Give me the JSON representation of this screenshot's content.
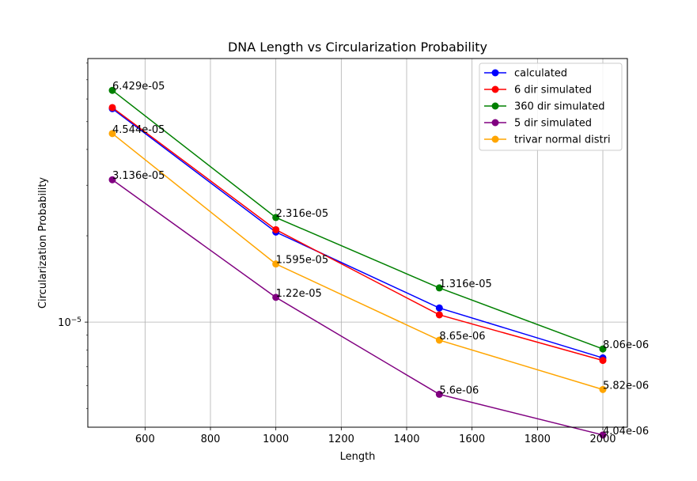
{
  "chart_data": {
    "type": "line",
    "title": "DNA Length vs Circularization Probability",
    "xlabel": "Length",
    "ylabel": "Circularization Probability",
    "yscale": "log",
    "xlim": [
      425,
      2075
    ],
    "ylim": [
      4.3e-06,
      8.3e-05
    ],
    "grid": true,
    "legend_position": "top-right",
    "x": [
      500,
      1000,
      1500,
      2000
    ],
    "x_ticks": [
      600,
      800,
      1000,
      1200,
      1400,
      1600,
      1800,
      2000
    ],
    "y_tick_major_label": "10",
    "y_tick_major_exponent": "−5",
    "series": [
      {
        "name": "calculated",
        "color": "#0000ff",
        "values": [
          5.55e-05,
          2.06e-05,
          1.12e-05,
          7.5e-06
        ]
      },
      {
        "name": "6 dir simulated",
        "color": "#ff0000",
        "values": [
          5.6e-05,
          2.1e-05,
          1.06e-05,
          7.35e-06
        ]
      },
      {
        "name": "360 dir simulated",
        "color": "#008000",
        "values": [
          6.429e-05,
          2.316e-05,
          1.316e-05,
          8.06e-06
        ]
      },
      {
        "name": "5 dir simulated",
        "color": "#800080",
        "values": [
          3.136e-05,
          1.22e-05,
          5.6e-06,
          4.04e-06
        ]
      },
      {
        "name": "trivar normal distri",
        "color": "#ffa500",
        "values": [
          4.544e-05,
          1.595e-05,
          8.65e-06,
          5.82e-06
        ]
      }
    ],
    "annotations": [
      {
        "x": 500,
        "y": 6.429e-05,
        "text": "6.429e-05"
      },
      {
        "x": 500,
        "y": 4.544e-05,
        "text": "4.544e-05"
      },
      {
        "x": 500,
        "y": 3.136e-05,
        "text": "3.136e-05"
      },
      {
        "x": 1000,
        "y": 2.316e-05,
        "text": "2.316e-05"
      },
      {
        "x": 1000,
        "y": 1.595e-05,
        "text": "1.595e-05"
      },
      {
        "x": 1000,
        "y": 1.22e-05,
        "text": "1.22e-05"
      },
      {
        "x": 1500,
        "y": 1.316e-05,
        "text": "1.316e-05"
      },
      {
        "x": 1500,
        "y": 8.65e-06,
        "text": "8.65e-06"
      },
      {
        "x": 1500,
        "y": 5.6e-06,
        "text": "5.6e-06"
      },
      {
        "x": 2000,
        "y": 8.06e-06,
        "text": "8.06e-06"
      },
      {
        "x": 2000,
        "y": 5.82e-06,
        "text": "5.82e-06"
      },
      {
        "x": 2000,
        "y": 4.04e-06,
        "text": "4.04e-06"
      }
    ]
  }
}
